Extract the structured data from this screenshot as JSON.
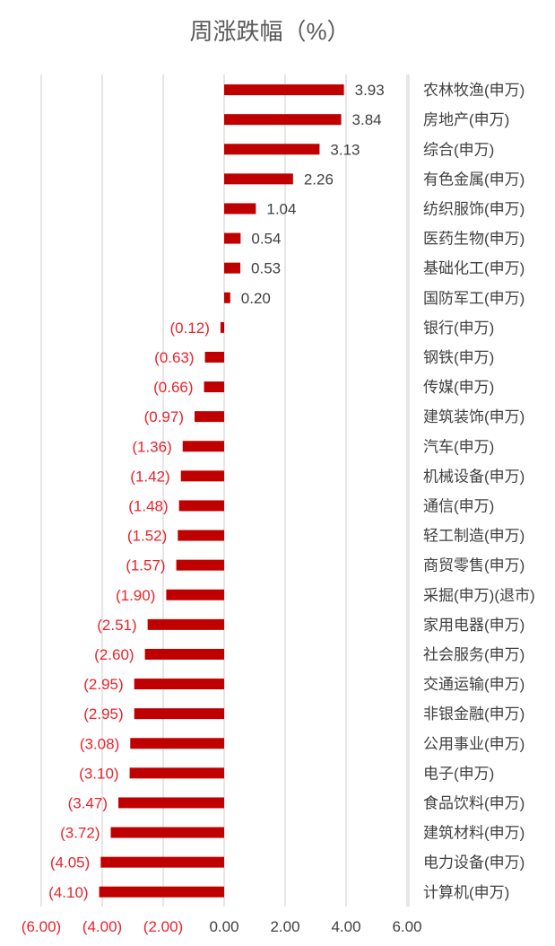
{
  "chart_data": {
    "type": "bar",
    "orientation": "horizontal",
    "title": "周涨跌幅（%）",
    "xlim": [
      -6,
      6
    ],
    "x_ticks": [
      -6,
      -4,
      -2,
      0,
      2,
      4,
      6
    ],
    "x_tick_labels": [
      "(6.00)",
      "(4.00)",
      "(2.00)",
      "0.00",
      "2.00",
      "4.00",
      "6.00"
    ],
    "grid": true,
    "bar_color": "#c00000",
    "negative_label_color": "#e8232b",
    "positive_label_color": "#404040",
    "categories": [
      "农林牧渔(申万)",
      "房地产(申万)",
      "综合(申万)",
      "有色金属(申万)",
      "纺织服饰(申万)",
      "医药生物(申万)",
      "基础化工(申万)",
      "国防军工(申万)",
      "银行(申万)",
      "钢铁(申万)",
      "传媒(申万)",
      "建筑装饰(申万)",
      "汽车(申万)",
      "机械设备(申万)",
      "通信(申万)",
      "轻工制造(申万)",
      "商贸零售(申万)",
      "采掘(申万)(退市)",
      "家用电器(申万)",
      "社会服务(申万)",
      "交通运输(申万)",
      "非银金融(申万)",
      "公用事业(申万)",
      "电子(申万)",
      "食品饮料(申万)",
      "建筑材料(申万)",
      "电力设备(申万)",
      "计算机(申万)"
    ],
    "values": [
      3.93,
      3.84,
      3.13,
      2.26,
      1.04,
      0.54,
      0.53,
      0.2,
      -0.12,
      -0.63,
      -0.66,
      -0.97,
      -1.36,
      -1.42,
      -1.48,
      -1.52,
      -1.57,
      -1.9,
      -2.51,
      -2.6,
      -2.95,
      -2.95,
      -3.08,
      -3.1,
      -3.47,
      -3.72,
      -4.05,
      -4.1
    ],
    "value_labels": [
      "3.93",
      "3.84",
      "3.13",
      "2.26",
      "1.04",
      "0.54",
      "0.53",
      "0.20",
      "(0.12)",
      "(0.63)",
      "(0.66)",
      "(0.97)",
      "(1.36)",
      "(1.42)",
      "(1.48)",
      "(1.52)",
      "(1.57)",
      "(1.90)",
      "(2.51)",
      "(2.60)",
      "(2.95)",
      "(2.95)",
      "(3.08)",
      "(3.10)",
      "(3.47)",
      "(3.72)",
      "(4.05)",
      "(4.10)"
    ]
  }
}
